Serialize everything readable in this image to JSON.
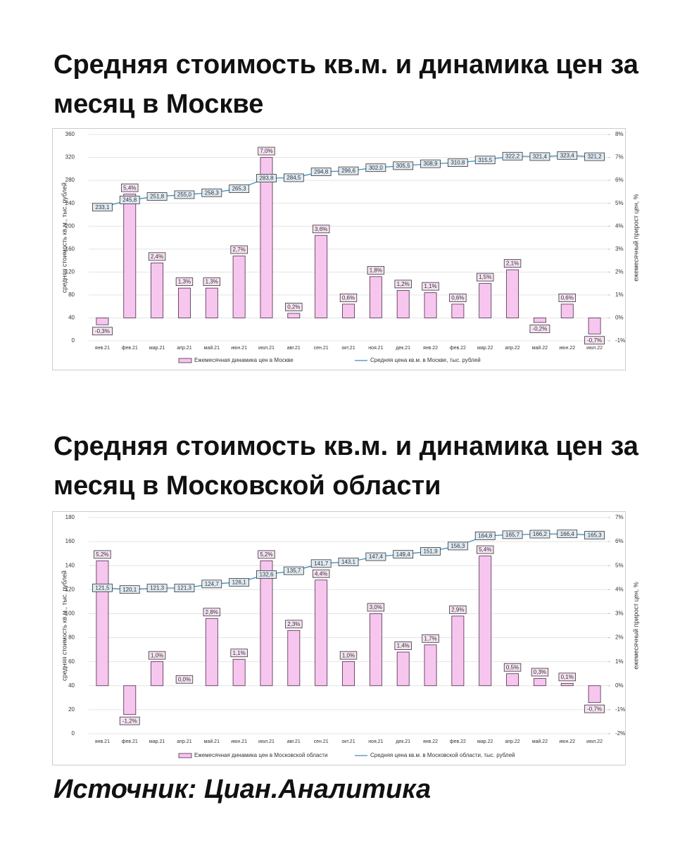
{
  "chart_data": [
    {
      "type": "combo",
      "title": "Средняя стоимость кв.м. и динамика цен за месяц в Москве",
      "ylabel": "средняя стоимость кв.м., тыс. рублей",
      "y2label": "ежемесячный прирост цен, %",
      "categories": [
        "янв.21",
        "фев.21",
        "мар.21",
        "апр.21",
        "май.21",
        "июн.21",
        "июл.21",
        "авг.21",
        "сен.21",
        "окт.21",
        "ноя.21",
        "дек.21",
        "янв.22",
        "фев.22",
        "мар.22",
        "апр.22",
        "май.22",
        "июн.22",
        "июл.22"
      ],
      "ylim": [
        0,
        360
      ],
      "yticks": [
        0,
        40,
        80,
        120,
        160,
        200,
        240,
        280,
        320,
        360
      ],
      "y2lim": [
        -1,
        8
      ],
      "y2ticks": [
        {
          "value": -1,
          "label": "-1%"
        },
        {
          "value": 0,
          "label": "0%"
        },
        {
          "value": 1,
          "label": "1%"
        },
        {
          "value": 2,
          "label": "2%"
        },
        {
          "value": 3,
          "label": "3%"
        },
        {
          "value": 4,
          "label": "4%"
        },
        {
          "value": 5,
          "label": "5%"
        },
        {
          "value": 6,
          "label": "6%"
        },
        {
          "value": 7,
          "label": "7%"
        },
        {
          "value": 8,
          "label": "8%"
        }
      ],
      "grid": true,
      "series": [
        {
          "name": "Ежемесячная динамика цен в Москве",
          "type": "bar",
          "axis": "y2",
          "color": "#f7c6ef",
          "values": [
            -0.3,
            5.4,
            2.4,
            1.3,
            1.3,
            2.7,
            7.0,
            0.2,
            3.6,
            0.6,
            1.8,
            1.2,
            1.1,
            0.6,
            1.5,
            2.1,
            -0.2,
            0.6,
            -0.7
          ],
          "value_labels": [
            "-0,3%",
            "5,4%",
            "2,4%",
            "1,3%",
            "1,3%",
            "2,7%",
            "7,0%",
            "0,2%",
            "3,6%",
            "0,6%",
            "1,8%",
            "1,2%",
            "1,1%",
            "0,6%",
            "1,5%",
            "2,1%",
            "-0,2%",
            "0,6%",
            "-0,7%"
          ]
        },
        {
          "name": "Средняя цена кв.м. в Москве, тыс. рублей",
          "type": "line",
          "color": "#3b8fc4",
          "values": [
            233.1,
            245.8,
            251.8,
            255.0,
            258.3,
            265.3,
            283.8,
            284.5,
            294.8,
            296.6,
            302.0,
            305.5,
            308.9,
            310.8,
            315.5,
            322.2,
            321.4,
            323.4,
            321.2
          ],
          "value_labels": [
            "233,1",
            "245,8",
            "251,8",
            "255,0",
            "258,3",
            "265,3",
            "283,8",
            "284,5",
            "294,8",
            "296,6",
            "302,0",
            "305,5",
            "308,9",
            "310,8",
            "315,5",
            "322,2",
            "321,4",
            "323,4",
            "321,2"
          ]
        }
      ]
    },
    {
      "type": "combo",
      "title": "Средняя стоимость кв.м. и динамика цен за месяц в Московской области",
      "ylabel": "средняя стоимость кв.м., тыс. рублей",
      "y2label": "ежемесячный прирост цен, %",
      "categories": [
        "янв.21",
        "фев.21",
        "мар.21",
        "апр.21",
        "май.21",
        "июн.21",
        "июл.21",
        "авг.21",
        "сен.21",
        "окт.21",
        "ноя.21",
        "дек.21",
        "янв.22",
        "фев.22",
        "мар.22",
        "апр.22",
        "май.22",
        "июн.22",
        "июл.22"
      ],
      "ylim": [
        0,
        180
      ],
      "yticks": [
        0,
        20,
        40,
        60,
        80,
        100,
        120,
        140,
        160,
        180
      ],
      "y2lim": [
        -2,
        7
      ],
      "y2ticks": [
        {
          "value": -2,
          "label": "-2%"
        },
        {
          "value": -1,
          "label": "-1%"
        },
        {
          "value": 0,
          "label": "0%"
        },
        {
          "value": 1,
          "label": "1%"
        },
        {
          "value": 2,
          "label": "2%"
        },
        {
          "value": 3,
          "label": "3%"
        },
        {
          "value": 4,
          "label": "4%"
        },
        {
          "value": 5,
          "label": "5%"
        },
        {
          "value": 6,
          "label": "6%"
        },
        {
          "value": 7,
          "label": "7%"
        }
      ],
      "grid": true,
      "series": [
        {
          "name": "Ежемесячная динамика цен в Московской области",
          "type": "bar",
          "axis": "y2",
          "color": "#f7c6ef",
          "values": [
            5.2,
            -1.2,
            1.0,
            0.0,
            2.8,
            1.1,
            5.2,
            2.3,
            4.4,
            1.0,
            3.0,
            1.4,
            1.7,
            2.9,
            5.4,
            0.5,
            0.3,
            0.1,
            -0.7
          ],
          "value_labels": [
            "5,2%",
            "-1,2%",
            "1,0%",
            "0,0%",
            "2,8%",
            "1,1%",
            "5,2%",
            "2,3%",
            "4,4%",
            "1,0%",
            "3,0%",
            "1,4%",
            "1,7%",
            "2,9%",
            "5,4%",
            "0,5%",
            "0,3%",
            "0,1%",
            "-0,7%"
          ]
        },
        {
          "name": "Средняя цена кв.м. в Московской области, тыс. рублей",
          "type": "line",
          "color": "#3b8fc4",
          "values": [
            121.5,
            120.1,
            121.3,
            121.3,
            124.7,
            126.1,
            132.6,
            135.7,
            141.7,
            143.1,
            147.4,
            149.4,
            151.9,
            156.3,
            164.8,
            165.7,
            166.2,
            166.4,
            165.3
          ],
          "value_labels": [
            "121,5",
            "120,1",
            "121,3",
            "121,3",
            "124,7",
            "126,1",
            "132,6",
            "135,7",
            "141,7",
            "143,1",
            "147,4",
            "149,4",
            "151,9",
            "156,3",
            "164,8",
            "165,7",
            "166,2",
            "166,4",
            "165,3"
          ]
        }
      ]
    }
  ],
  "source": "Источник: Циан.Аналитика"
}
